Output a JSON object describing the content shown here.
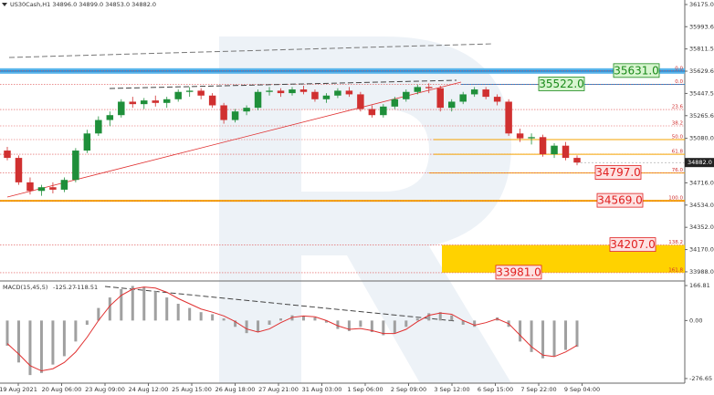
{
  "chart_data": {
    "type": "candlestick",
    "title": "US30Cash,H1  34896.0 34899.0 34853.0 34882.0",
    "categories": [
      "19 Aug 2021",
      "20 Aug 06:00",
      "23 Aug 09:00",
      "24 Aug 12:00",
      "25 Aug 15:00",
      "26 Aug 18:00",
      "27 Aug 21:00",
      "31 Aug 03:00",
      "1 Sep 06:00",
      "2 Sep 09:00",
      "3 Sep 12:00",
      "6 Sep 15:00",
      "7 Sep 22:00",
      "9 Sep 04:00"
    ],
    "ylim": [
      33913,
      36212
    ],
    "yticks": [
      {
        "value": 36175,
        "label": "36175.0"
      },
      {
        "value": 35993.6,
        "label": "35993.6"
      },
      {
        "value": 35811.5,
        "label": "35811.5"
      },
      {
        "value": 35629.6,
        "label": "35629.6"
      },
      {
        "value": 35447.5,
        "label": "35447.5"
      },
      {
        "value": 35265.6,
        "label": "35265.6"
      },
      {
        "value": 35080,
        "label": "35080.0"
      },
      {
        "value": 34716,
        "label": "34716.0"
      },
      {
        "value": 34534,
        "label": "34534.0"
      },
      {
        "value": 34352,
        "label": "34352.0"
      },
      {
        "value": 34170,
        "label": "34170.0"
      },
      {
        "value": 33988,
        "label": "33988.0"
      }
    ],
    "current_price": {
      "value": 34882,
      "label": "34882.0"
    },
    "up_color": "#1f8f3a",
    "down_color": "#d03030",
    "candles": [
      [
        34980,
        35010,
        34900,
        34920
      ],
      [
        34920,
        34940,
        34700,
        34720
      ],
      [
        34720,
        34760,
        34620,
        34650
      ],
      [
        34650,
        34700,
        34610,
        34680
      ],
      [
        34680,
        34720,
        34630,
        34660
      ],
      [
        34660,
        34760,
        34640,
        34740
      ],
      [
        34740,
        35000,
        34720,
        34980
      ],
      [
        34980,
        35150,
        34960,
        35120
      ],
      [
        35120,
        35260,
        35100,
        35230
      ],
      [
        35230,
        35300,
        35180,
        35270
      ],
      [
        35270,
        35400,
        35250,
        35380
      ],
      [
        35380,
        35420,
        35330,
        35360
      ],
      [
        35360,
        35410,
        35320,
        35390
      ],
      [
        35390,
        35430,
        35340,
        35370
      ],
      [
        35370,
        35420,
        35330,
        35400
      ],
      [
        35400,
        35480,
        35380,
        35460
      ],
      [
        35460,
        35500,
        35420,
        35470
      ],
      [
        35470,
        35490,
        35400,
        35430
      ],
      [
        35430,
        35450,
        35330,
        35350
      ],
      [
        35350,
        35370,
        35200,
        35230
      ],
      [
        35230,
        35320,
        35210,
        35300
      ],
      [
        35300,
        35350,
        35270,
        35330
      ],
      [
        35330,
        35480,
        35310,
        35460
      ],
      [
        35460,
        35500,
        35430,
        35470
      ],
      [
        35470,
        35490,
        35420,
        35450
      ],
      [
        35450,
        35500,
        35430,
        35480
      ],
      [
        35480,
        35510,
        35440,
        35460
      ],
      [
        35460,
        35480,
        35380,
        35400
      ],
      [
        35400,
        35450,
        35370,
        35430
      ],
      [
        35430,
        35490,
        35410,
        35470
      ],
      [
        35470,
        35500,
        35420,
        35440
      ],
      [
        35440,
        35460,
        35300,
        35320
      ],
      [
        35320,
        35350,
        35250,
        35270
      ],
      [
        35270,
        35360,
        35250,
        35340
      ],
      [
        35340,
        35420,
        35320,
        35400
      ],
      [
        35400,
        35480,
        35380,
        35460
      ],
      [
        35460,
        35520,
        35440,
        35500
      ],
      [
        35500,
        35530,
        35450,
        35490
      ],
      [
        35490,
        35510,
        35300,
        35330
      ],
      [
        35330,
        35400,
        35300,
        35380
      ],
      [
        35380,
        35460,
        35360,
        35440
      ],
      [
        35440,
        35500,
        35420,
        35480
      ],
      [
        35480,
        35500,
        35400,
        35420
      ],
      [
        35420,
        35440,
        35350,
        35380
      ],
      [
        35380,
        35400,
        35100,
        35120
      ],
      [
        35120,
        35160,
        35050,
        35080
      ],
      [
        35080,
        35120,
        35030,
        35090
      ],
      [
        35090,
        35110,
        34930,
        34950
      ],
      [
        34950,
        35040,
        34920,
        35020
      ],
      [
        35020,
        35050,
        34900,
        34920
      ],
      [
        34920,
        34940,
        34860,
        34882
      ]
    ],
    "fib_levels": [
      {
        "label": "0.0",
        "price": 35631
      },
      {
        "label": "0.0",
        "price": 35522
      },
      {
        "label": "23.6",
        "price": 35316
      },
      {
        "label": "38.2",
        "price": 35182
      },
      {
        "label": "50.0",
        "price": 35070
      },
      {
        "label": "61.8",
        "price": 34950
      },
      {
        "label": "76.0",
        "price": 34797
      },
      {
        "label": "100.0",
        "price": 34569
      },
      {
        "label": "138.2",
        "price": 34207
      },
      {
        "label": "161.8",
        "price": 33981
      }
    ],
    "levels": [
      {
        "value": 35631,
        "label": "35631.0",
        "color": "#1a8a1a",
        "fill": "#d8f5d0"
      },
      {
        "value": 35522,
        "label": "35522.0",
        "color": "#1a8a1a",
        "fill": "#d8f5d0"
      },
      {
        "value": 34797,
        "label": "34797.0",
        "color": "#e02020",
        "fill": "#fde2e2"
      },
      {
        "value": 34569,
        "label": "34569.0",
        "color": "#e02020",
        "fill": "#fde2e2"
      },
      {
        "value": 34207,
        "label": "34207.0",
        "color": "#e02020",
        "fill": "#fde2e2"
      },
      {
        "value": 33981,
        "label": "33981.0",
        "color": "#e02020",
        "fill": "#fde2e2"
      }
    ],
    "macd": {
      "title": "MACD(15,45,5)",
      "ylim": [
        -298.6,
        184.4
      ],
      "yticks": [
        166.81,
        {
          "value": 0,
          "label": "0.00"
        },
        -276.65
      ],
      "histogram_color": "#a0a0a0",
      "signal_color": "#e03030",
      "histogram": [
        -120,
        -200,
        -260,
        -250,
        -210,
        -170,
        -100,
        -20,
        60,
        110,
        150,
        165,
        160,
        140,
        110,
        80,
        60,
        40,
        30,
        10,
        -30,
        -60,
        -55,
        -20,
        10,
        25,
        20,
        15,
        -10,
        -40,
        -50,
        -30,
        -55,
        -70,
        -60,
        -30,
        10,
        35,
        40,
        25,
        -20,
        -30,
        0,
        15,
        -30,
        -100,
        -150,
        -180,
        -170,
        -140,
        -125.27
      ],
      "signal": [
        -110,
        -160,
        -215,
        -240,
        -230,
        -200,
        -150,
        -80,
        0,
        70,
        120,
        150,
        160,
        155,
        135,
        105,
        80,
        55,
        40,
        22,
        -5,
        -40,
        -55,
        -40,
        -10,
        15,
        22,
        18,
        0,
        -25,
        -42,
        -38,
        -48,
        -62,
        -62,
        -42,
        -5,
        25,
        36,
        30,
        0,
        -22,
        -10,
        8,
        -15,
        -70,
        -125,
        -165,
        -172,
        -150,
        -118.51
      ]
    }
  }
}
